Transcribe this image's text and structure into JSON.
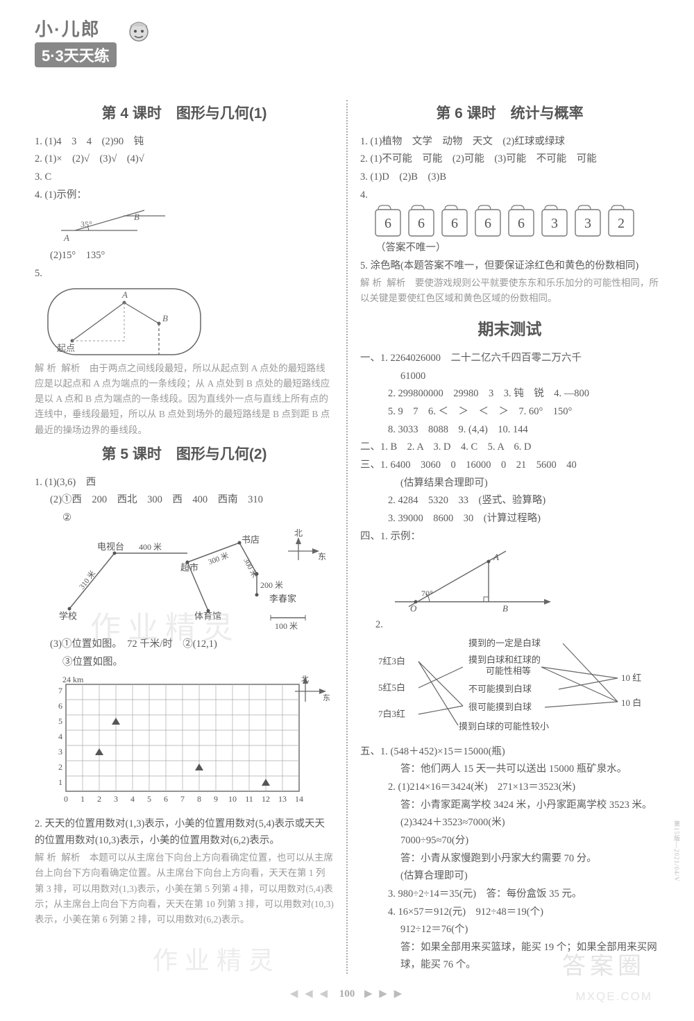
{
  "logo": {
    "top": "小·儿郎",
    "bottom": "5·3天天练"
  },
  "page_number": "100",
  "watermark_main": "答案圈",
  "watermark_url": "MXQE.COM",
  "wm_ghost": "作业精灵",
  "side_code": "第15版—2021/04/V",
  "left": {
    "lesson4": {
      "title": "第 4 课时　图形与几何(1)",
      "q1": "1. (1)4　3　4　(2)90　钝",
      "q2": "2. (1)×　(2)√　(3)√　(4)√",
      "q3": "3. C",
      "q4a": "4. (1)示例：",
      "angle_text": "35°",
      "angle_labelA": "A",
      "angle_labelB": "B",
      "q4b": "(2)15°　135°",
      "q5": "5.",
      "fig5_A": "A",
      "fig5_B": "B",
      "fig5_start": "起点",
      "analysis5": "解析　由于两点之间线段最短，所以从起点到 A 点处的最短路线应是以起点和 A 点为端点的一条线段；从 A 点处到 B 点处的最短路线应是以 A 点和 B 点为端点的一条线段。因为直线外一点与直线上所有点的连线中，垂线段最短，所以从 B 点处到场外的最短路线是 B 点到距 B 点最近的操场边界的垂线段。"
    },
    "lesson5": {
      "title": "第 5 课时　图形与几何(2)",
      "q1_1": "1. (1)(3,6)　西",
      "q1_2": "(2)①西　200　西北　300　西　400　西南　310",
      "q1_2b": "②",
      "map_labels": {
        "tv": "电视台",
        "book": "书店",
        "market": "超市",
        "school": "学校",
        "gym": "体育馆",
        "li": "李春家",
        "d400": "400 米",
        "d300a": "300 米",
        "d300b": "300 米",
        "d200": "200 米",
        "d100": "100 米",
        "d310": "310 米",
        "compass_n": "北",
        "compass_e": "东"
      },
      "q1_3": "(3)①位置如图。　72 千米/时　②(12,1)",
      "q1_3b": "③位置如图。",
      "chart": {
        "unit": "24 km",
        "compass_n": "北",
        "compass_e": "东",
        "y_ticks": [
          "1",
          "2",
          "3",
          "4",
          "5",
          "6",
          "7"
        ],
        "x_ticks": [
          "1",
          "2",
          "3",
          "4",
          "5",
          "6",
          "7",
          "8",
          "9",
          "10",
          "11",
          "12",
          "13",
          "14"
        ]
      },
      "q2": "2. 天天的位置用数对(1,3)表示，小美的位置用数对(5,4)表示或天天的位置用数对(10,3)表示，小美的位置用数对(6,2)表示。",
      "analysis2": "解析　本题可以从主席台下向台上方向看确定位置，也可以从主席台上向台下方向看确定位置。从主席台下向台上方向看，天天在第 1 列第 3 排，可以用数对(1,3)表示，小美在第 5 列第 4 排，可以用数对(5,4)表示；从主席台上向台下方向看，天天在第 10 列第 3 排，可以用数对(10,3)表示，小美在第 6 列第 2 排，可以用数对(6,2)表示。"
    }
  },
  "right": {
    "lesson6": {
      "title": "第 6 课时　统计与概率",
      "q1": "1. (1)植物　文学　动物　天文　(2)红球或绿球",
      "q2": "2. (1)不可能　可能　(2)可能　(3)可能　不可能　可能",
      "q3": "3. (1)D　(2)B　(3)B",
      "q4": "4.",
      "cards": [
        "6",
        "6",
        "6",
        "6",
        "6",
        "3",
        "3",
        "2"
      ],
      "q4_note": "（答案不唯一）",
      "q5": "5. 涂色略(本题答案不唯一，但要保证涂红色和黄色的份数相同)",
      "analysis5": "解析　要使游戏规则公平就要使东东和乐乐加分的可能性相同，所以关键是要使红色区域和黄色区域的份数相同。"
    },
    "final": {
      "title": "期末测试",
      "s1_1": "一、1. 2264026000　二十二亿六千四百零二万六千",
      "s1_1b": "61000",
      "s1_2": "2. 299800000　29980　3　3. 钝　锐　4. —800",
      "s1_5": "5. 9　7　6. ＜　＞　＜　＞　7. 60°　150°",
      "s1_8": "8. 3033　8088　9. (4,4)　10. 144",
      "s2": "二、1. B　2. A　3. D　4. C　5. A　6. D",
      "s3_1": "三、1. 6400　3060　0　16000　0　21　5600　40",
      "s3_1b": "(估算结果合理即可)",
      "s3_2": "2. 4284　5320　33　(竖式、验算略)",
      "s3_3": "3. 39000　8600　30　(计算过程略)",
      "s4_1": "四、1. 示例：",
      "angle70": "70°",
      "pt_O": "O",
      "pt_A": "A",
      "pt_B": "B",
      "s4_2": "2.",
      "pair": {
        "l1": "7红3白",
        "l2": "5红5白",
        "l3": "7白3红",
        "r1": "10 红",
        "r2": "10 白",
        "m1": "摸到的一定是白球",
        "m2": "摸到白球和红球的\n可能性相等",
        "m3": "不可能摸到白球",
        "m4": "很可能摸到白球",
        "m5": "摸到白球的可能性较小"
      },
      "s5_1a": "五、1. (548＋452)×15＝15000(瓶)",
      "s5_1b": "答：他们两人 15 天一共可以送出 15000 瓶矿泉水。",
      "s5_2a": "2. (1)214×16＝3424(米)　271×13＝3523(米)",
      "s5_2b": "答：小青家距离学校 3424 米，小丹家距离学校 3523 米。",
      "s5_2c": "(2)3424＋3523≈7000(米)",
      "s5_2d": "7000÷95≈70(分)",
      "s5_2e": "答：小青从家慢跑到小丹家大约需要 70 分。",
      "s5_2f": "(估算合理即可)",
      "s5_3": "3. 980÷2÷14＝35(元)　答：每份盒饭 35 元。",
      "s5_4a": "4. 16×57＝912(元)　912÷48＝19(个)",
      "s5_4b": "912÷12＝76(个)",
      "s5_4c": "答：如果全部用来买篮球，能买 19 个；如果全部用来买网球，能买 76 个。"
    }
  }
}
